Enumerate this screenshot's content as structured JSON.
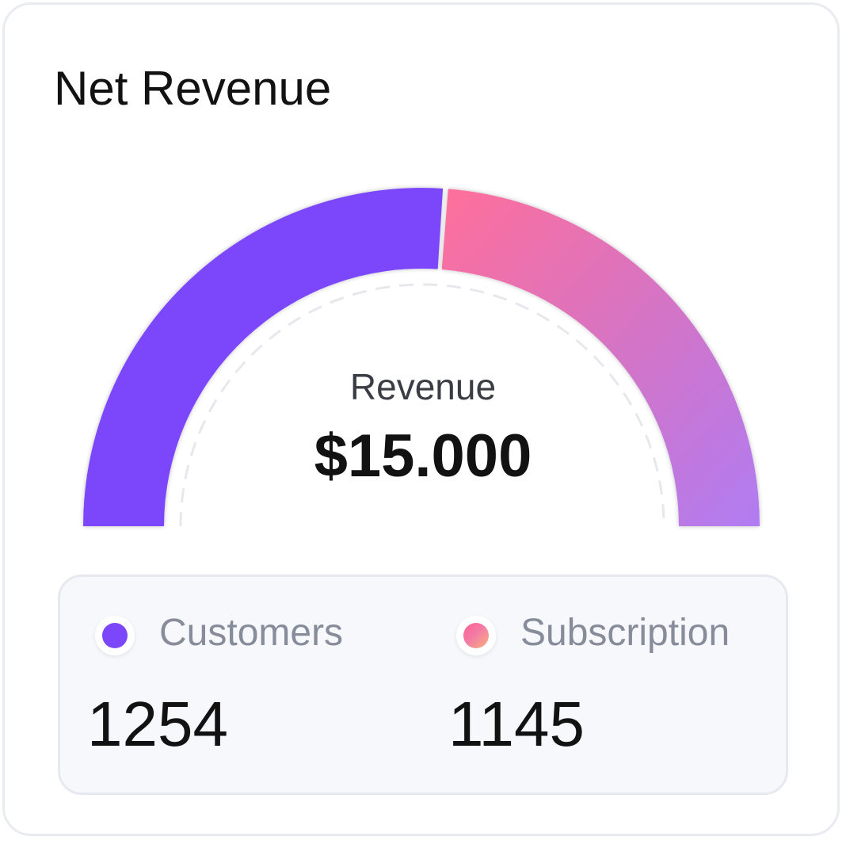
{
  "card": {
    "title": "Net Revenue"
  },
  "chart_data": {
    "type": "pie",
    "variant": "semi-donut gauge",
    "title": "Net Revenue",
    "center_label": "Revenue",
    "center_value": "$15.000",
    "categories": [
      "Customers",
      "Subscription"
    ],
    "values": [
      1254,
      1145
    ],
    "colors": [
      "#7c47fb",
      "#ff6f9a"
    ],
    "gradient_colors": {
      "Subscription": [
        "#ff6f9a",
        "#b07cf2"
      ]
    }
  },
  "legend": {
    "items": [
      {
        "label": "Customers",
        "value": "1254",
        "icon": "purple-dot-icon"
      },
      {
        "label": "Subscription",
        "value": "1145",
        "icon": "gradient-dot-icon"
      }
    ]
  }
}
